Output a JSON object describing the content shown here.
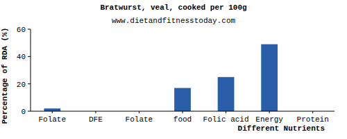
{
  "chart_data": {
    "type": "bar",
    "title": "Bratwurst, veal, cooked per 100g",
    "subtitle": "www.dietandfitnesstoday.com",
    "x_label": "Different Nutrients",
    "y_label": "Percentage of RDA (%)",
    "categories": [
      "Folate",
      "DFE",
      "Folate",
      "food",
      "Folic acid",
      "Energy",
      "Protein"
    ],
    "values": [
      2,
      0,
      0,
      17,
      25,
      49,
      0
    ],
    "color": "#2b5ea8",
    "ylim": [
      0,
      60
    ],
    "yticks": [
      0,
      20,
      40,
      60
    ],
    "grid": false
  }
}
